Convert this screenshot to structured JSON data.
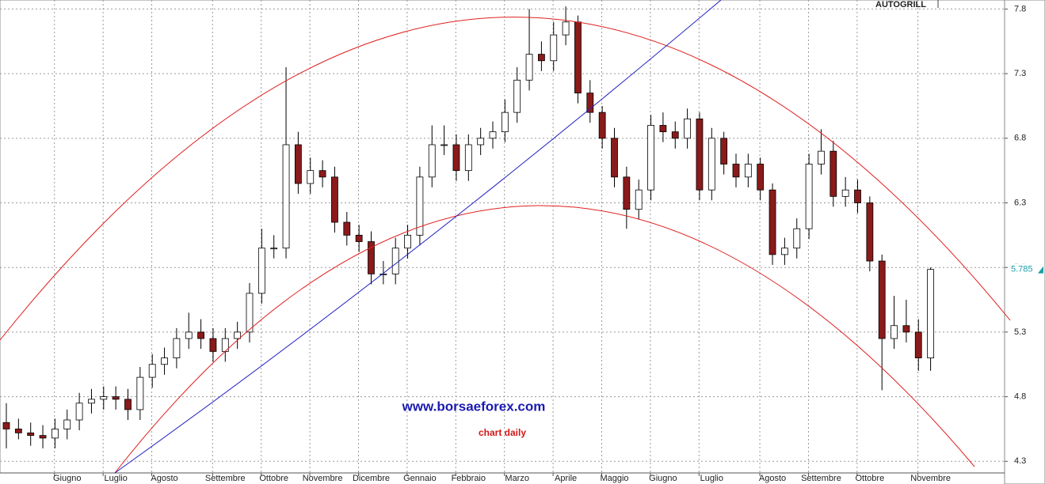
{
  "chart_data": {
    "type": "candlestick",
    "title": "AUTOGRILL",
    "watermark": "www.borsaeforex.com",
    "subtitle": "chart daily",
    "categories": [
      null,
      null,
      null,
      null,
      null,
      "Giugno",
      null,
      null,
      null,
      "Luglio",
      null,
      null,
      null,
      "Agosto",
      null,
      null,
      null,
      null,
      "Settembre",
      null,
      null,
      null,
      "Ottobre",
      null,
      null,
      null,
      "Novembre",
      null,
      null,
      null,
      "Dicembre",
      null,
      null,
      null,
      "Gennaio",
      null,
      null,
      null,
      "Febbraio",
      null,
      null,
      null,
      "Marzo",
      null,
      null,
      null,
      "Aprile",
      null,
      null,
      null,
      "Maggio",
      null,
      null,
      null,
      "Giugno",
      null,
      null,
      null,
      "Luglio",
      null,
      null,
      null,
      null,
      "Agosto",
      null,
      null,
      null,
      "Settembre",
      null,
      null,
      null,
      "Ottobre",
      null,
      null,
      null,
      null,
      "Novembre"
    ],
    "open": [
      4.6,
      4.55,
      4.52,
      4.5,
      4.48,
      4.55,
      4.62,
      4.75,
      4.78,
      4.8,
      4.78,
      4.7,
      4.95,
      5.05,
      5.1,
      5.25,
      5.3,
      5.25,
      5.15,
      5.25,
      5.3,
      5.6,
      5.95,
      5.95,
      6.75,
      6.45,
      6.55,
      6.5,
      6.15,
      6.05,
      6.0,
      5.75,
      5.75,
      5.95,
      6.05,
      6.5,
      6.75,
      6.75,
      6.55,
      6.75,
      6.8,
      6.85,
      7.0,
      7.25,
      7.45,
      7.4,
      7.6,
      7.7,
      7.15,
      7.0,
      6.8,
      6.5,
      6.25,
      6.4,
      6.9,
      6.85,
      6.8,
      6.95,
      6.4,
      6.8,
      6.6,
      6.5,
      6.6,
      6.4,
      5.9,
      5.95,
      6.1,
      6.6,
      6.7,
      6.35,
      6.4,
      6.3,
      5.85,
      5.25,
      5.35,
      5.3,
      5.1
    ],
    "high": [
      4.75,
      4.63,
      4.6,
      4.58,
      4.63,
      4.7,
      4.83,
      4.86,
      4.88,
      4.88,
      4.86,
      5.03,
      5.13,
      5.18,
      5.33,
      5.45,
      5.4,
      5.33,
      5.33,
      5.38,
      5.68,
      6.1,
      6.05,
      7.35,
      6.85,
      6.65,
      6.63,
      6.58,
      6.23,
      6.13,
      6.08,
      5.85,
      6.03,
      6.13,
      6.58,
      6.9,
      6.9,
      6.83,
      6.83,
      6.88,
      6.93,
      7.1,
      7.35,
      7.8,
      7.55,
      7.7,
      7.82,
      7.75,
      7.25,
      7.05,
      6.88,
      6.58,
      6.48,
      6.98,
      7.0,
      6.93,
      7.03,
      7.0,
      6.88,
      6.85,
      6.68,
      6.68,
      6.65,
      6.45,
      6.03,
      6.18,
      6.68,
      6.87,
      6.78,
      6.5,
      6.48,
      6.35,
      5.9,
      5.58,
      5.55,
      5.4,
      5.8
    ],
    "low": [
      4.4,
      4.47,
      4.42,
      4.4,
      4.4,
      4.47,
      4.54,
      4.67,
      4.7,
      4.7,
      4.62,
      4.62,
      4.87,
      4.97,
      5.02,
      5.17,
      5.17,
      5.07,
      5.07,
      5.17,
      5.22,
      5.52,
      5.87,
      5.87,
      6.37,
      6.37,
      6.42,
      6.07,
      5.97,
      5.92,
      5.67,
      5.67,
      5.67,
      5.87,
      5.97,
      6.42,
      6.67,
      6.47,
      6.47,
      6.67,
      6.72,
      6.77,
      6.92,
      7.17,
      7.32,
      7.32,
      7.52,
      7.07,
      6.92,
      6.72,
      6.42,
      6.1,
      6.17,
      6.32,
      6.77,
      6.72,
      6.72,
      6.32,
      6.32,
      6.52,
      6.42,
      6.42,
      6.32,
      5.82,
      5.82,
      5.87,
      6.02,
      6.52,
      6.27,
      6.27,
      6.22,
      5.77,
      4.85,
      5.17,
      5.22,
      5.0,
      5.0
    ],
    "close": [
      4.55,
      4.52,
      4.5,
      4.48,
      4.55,
      4.62,
      4.75,
      4.78,
      4.8,
      4.78,
      4.7,
      4.95,
      5.05,
      5.1,
      5.25,
      5.3,
      5.25,
      5.15,
      5.25,
      5.3,
      5.6,
      5.95,
      5.95,
      6.75,
      6.45,
      6.55,
      6.5,
      6.15,
      6.05,
      6.0,
      5.75,
      5.75,
      5.95,
      6.05,
      6.5,
      6.75,
      6.75,
      6.55,
      6.75,
      6.8,
      6.85,
      7.0,
      7.25,
      7.45,
      7.4,
      7.6,
      7.7,
      7.15,
      7.0,
      6.8,
      6.5,
      6.25,
      6.4,
      6.9,
      6.85,
      6.8,
      6.95,
      6.4,
      6.8,
      6.6,
      6.5,
      6.6,
      6.4,
      5.9,
      5.95,
      6.1,
      6.6,
      6.7,
      6.35,
      6.4,
      6.3,
      5.85,
      5.25,
      5.35,
      5.3,
      5.1,
      5.785
    ],
    "ylim": [
      4.21,
      7.87
    ],
    "yticks": [
      4.3,
      4.8,
      5.3,
      5.8,
      6.3,
      6.8,
      7.3,
      7.8
    ],
    "grid": true,
    "up_color": "#ffffff",
    "down_color": "#8b1a1a",
    "last_price_color": "#1a9fa8"
  }
}
